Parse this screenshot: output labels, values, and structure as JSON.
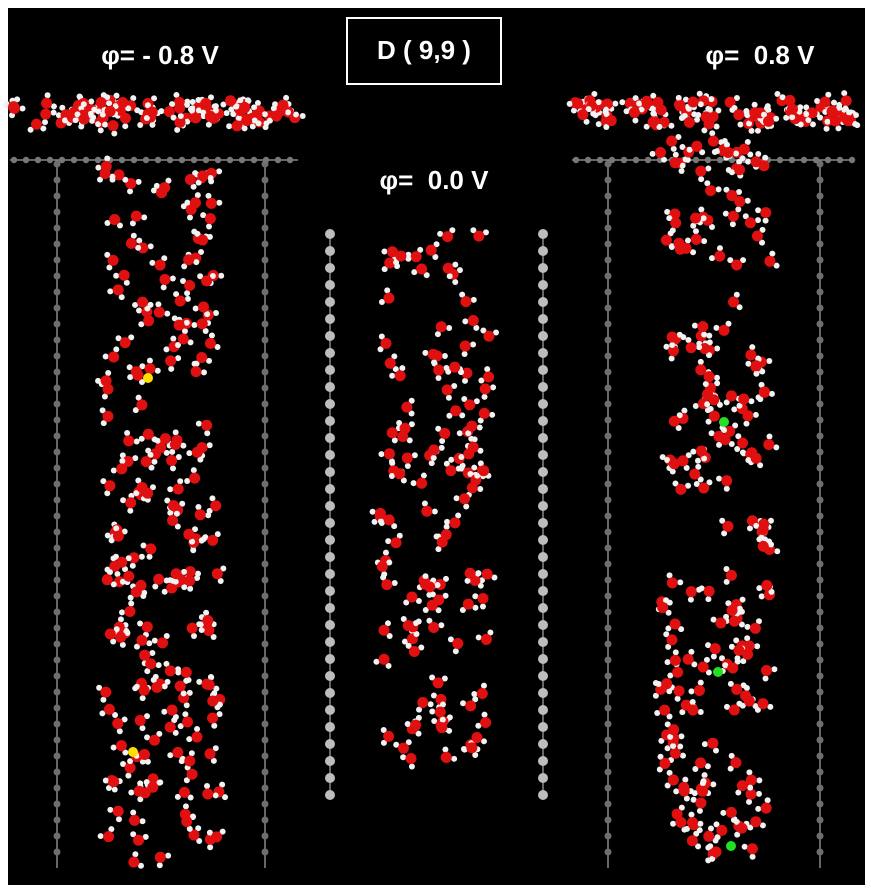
{
  "title": "D ( 9,9 )",
  "panels": [
    {
      "label": "φ= - 0.8 V"
    },
    {
      "label": "φ=  0.0 V"
    },
    {
      "label": "φ=  0.8 V"
    }
  ]
}
